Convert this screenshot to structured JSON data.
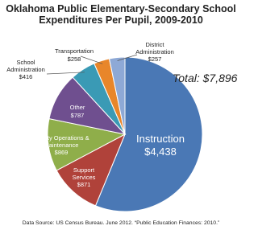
{
  "chart_data": {
    "type": "pie",
    "title": "Oklahoma Public Elementary-Secondary School Expenditures Per Pupil, 2009-2010",
    "categories": [
      "Instruction",
      "Support Services",
      "Facility Operations & Maintenance",
      "Other",
      "School Administration",
      "Transportation",
      "District Administration"
    ],
    "values": [
      4438,
      871,
      869,
      787,
      416,
      258,
      257
    ],
    "value_labels": [
      "$4,438",
      "$871",
      "$869",
      "$787",
      "$416",
      "$258",
      "$257"
    ],
    "colors": [
      "#4a78b5",
      "#b0423a",
      "#8fae4a",
      "#6f4f8f",
      "#3a9ab5",
      "#e8862a",
      "#8ea9d6"
    ],
    "annotation": "Total: $7,896",
    "source": "Data Source: US Census Bureau. June 2012. “Public Education Finances: 2010.”"
  }
}
